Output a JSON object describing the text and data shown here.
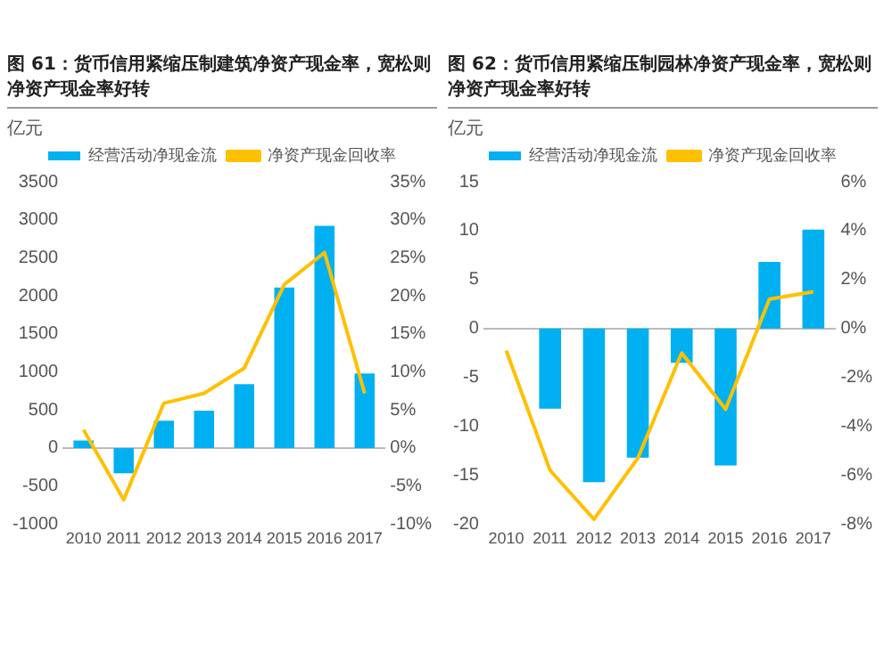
{
  "chart_data": [
    {
      "type": "bar",
      "title": "图 61：货币信用紧缩压制建筑净资产现金率，宽松则净资产现金率好转",
      "ylabel": "亿元",
      "categories": [
        "2010",
        "2011",
        "2012",
        "2013",
        "2014",
        "2015",
        "2016",
        "2017"
      ],
      "series": [
        {
          "name": "经营活动净现金流",
          "color": "#00b0f0",
          "values": [
            100,
            -330,
            360,
            490,
            840,
            2110,
            2920,
            980
          ]
        },
        {
          "name": "净资产现金回收率",
          "type": "line",
          "axis": "y2",
          "color": "#ffc000",
          "values": [
            2.4,
            -6.8,
            5.9,
            7.2,
            10.5,
            21.5,
            25.7,
            7.2
          ]
        }
      ],
      "ylim": [
        -1000,
        3500
      ],
      "yticks": [
        -1000,
        -500,
        0,
        500,
        1000,
        1500,
        2000,
        2500,
        3000,
        3500
      ],
      "y2lim": [
        -10,
        35
      ],
      "y2ticks": [
        {
          "value": -10,
          "label": "-10%"
        },
        {
          "value": -5,
          "label": "-5%"
        },
        {
          "value": 0,
          "label": "0%"
        },
        {
          "value": 5,
          "label": "5%"
        },
        {
          "value": 10,
          "label": "10%"
        },
        {
          "value": 15,
          "label": "15%"
        },
        {
          "value": 20,
          "label": "20%"
        },
        {
          "value": 25,
          "label": "25%"
        },
        {
          "value": 30,
          "label": "30%"
        },
        {
          "value": 35,
          "label": "35%"
        }
      ],
      "legend": "top",
      "marker": "none"
    },
    {
      "type": "bar",
      "title": "图 62：货币信用紧缩压制园林净资产现金率，宽松则净资产现金率好转",
      "ylabel": "亿元",
      "categories": [
        "2010",
        "2011",
        "2012",
        "2013",
        "2014",
        "2015",
        "2016",
        "2017"
      ],
      "series": [
        {
          "name": "经营活动净现金流",
          "color": "#00b0f0",
          "values": [
            null,
            -8.2,
            -15.7,
            -13.2,
            -3.5,
            -14.0,
            6.8,
            10.1
          ]
        },
        {
          "name": "净资产现金回收率",
          "type": "line",
          "axis": "y2",
          "color": "#ffc000",
          "values": [
            -0.9,
            -5.8,
            -7.8,
            -5.3,
            -1.0,
            -3.3,
            1.2,
            1.5
          ]
        }
      ],
      "ylim": [
        -20,
        15
      ],
      "yticks": [
        -20,
        -15,
        -10,
        -5,
        0,
        5,
        10,
        15
      ],
      "y2lim": [
        -8,
        6
      ],
      "y2ticks": [
        {
          "value": -8,
          "label": "-8%"
        },
        {
          "value": -6,
          "label": "-6%"
        },
        {
          "value": -4,
          "label": "-4%"
        },
        {
          "value": -2,
          "label": "-2%"
        },
        {
          "value": 0,
          "label": "0%"
        },
        {
          "value": 2,
          "label": "2%"
        },
        {
          "value": 4,
          "label": "4%"
        },
        {
          "value": 6,
          "label": "6%"
        }
      ],
      "legend": "top",
      "marker": "none"
    }
  ]
}
